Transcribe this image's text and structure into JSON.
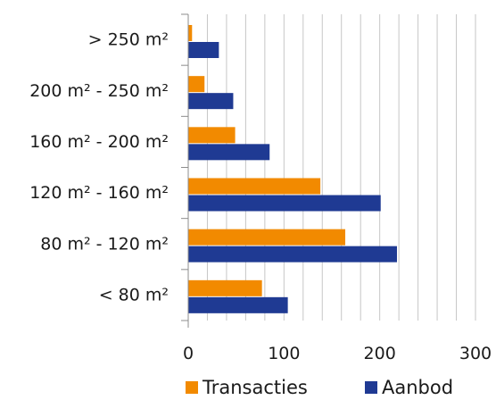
{
  "chart_data": {
    "type": "bar",
    "orientation": "horizontal",
    "categories": [
      "> 250 m²",
      "200 m² - 250 m²",
      "160 m² - 200 m²",
      "120 m² - 160 m²",
      "80 m² - 120 m²",
      "< 80 m²"
    ],
    "series": [
      {
        "name": "Transacties",
        "color": "#f28a00",
        "values": [
          4,
          17,
          49,
          138,
          164,
          77
        ]
      },
      {
        "name": "Aanbod",
        "color": "#1f3a93",
        "values": [
          32,
          47,
          85,
          201,
          218,
          104
        ]
      }
    ],
    "xlim": [
      0,
      300
    ],
    "xticks": [
      "0",
      "100",
      "200",
      "300"
    ],
    "grid": "vertical",
    "legend_position": "bottom"
  }
}
